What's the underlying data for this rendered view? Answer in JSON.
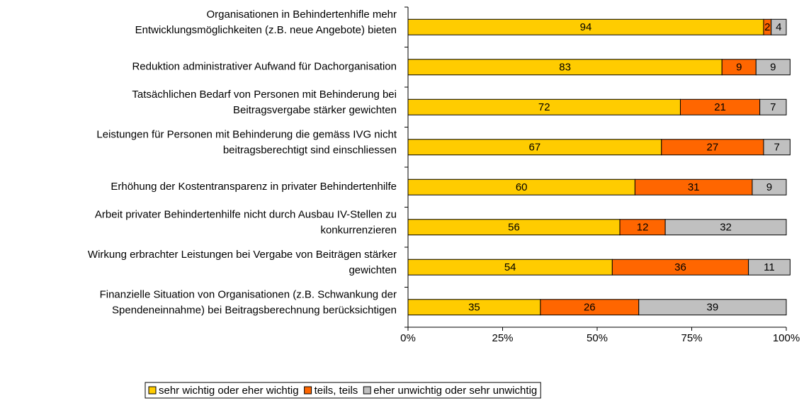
{
  "chart_data": {
    "type": "stacked_bar_horizontal",
    "categories": [
      [
        "Organisationen in Behindertenhifle mehr",
        "Entwicklungsmöglichkeiten (z.B. neue Angebote) bieten"
      ],
      [
        "Reduktion administrativer Aufwand für Dachorganisation"
      ],
      [
        "Tatsächlichen Bedarf von Personen mit Behinderung bei",
        "Beitragsvergabe stärker gewichten"
      ],
      [
        "Leistungen für Personen mit Behinderung die gemäss IVG nicht",
        "beitragsberechtigt sind einschliessen"
      ],
      [
        "Erhöhung der Kostentransparenz in privater Behindertenhilfe"
      ],
      [
        "Arbeit privater Behindertenhilfe nicht durch Ausbau IV-Stellen zu",
        "konkurrenzieren"
      ],
      [
        "Wirkung erbrachter Leistungen bei Vergabe von Beiträgen stärker",
        "gewichten"
      ],
      [
        "Finanzielle Situation von Organisationen (z.B. Schwankung der",
        "Spendeneinnahme) bei Beitragsberechnung berücksichtigen"
      ]
    ],
    "series": [
      {
        "name": "sehr wichtig oder eher wichtig",
        "color": "#ffcc00",
        "values": [
          94,
          83,
          72,
          67,
          60,
          56,
          54,
          35
        ]
      },
      {
        "name": "teils, teils",
        "color": "#ff6600",
        "values": [
          2,
          9,
          21,
          27,
          31,
          12,
          36,
          26
        ]
      },
      {
        "name": "eher unwichtig oder sehr unwichtig",
        "color": "#c0c0c0",
        "values": [
          4,
          9,
          7,
          7,
          9,
          32,
          11,
          39
        ]
      }
    ],
    "xlim": [
      0,
      100
    ],
    "xticks": [
      {
        "value": 0,
        "label": "0%"
      },
      {
        "value": 25,
        "label": "25%"
      },
      {
        "value": 50,
        "label": "50%"
      },
      {
        "value": 75,
        "label": "75%"
      },
      {
        "value": 100,
        "label": "100%"
      }
    ],
    "legend": "bottom"
  }
}
